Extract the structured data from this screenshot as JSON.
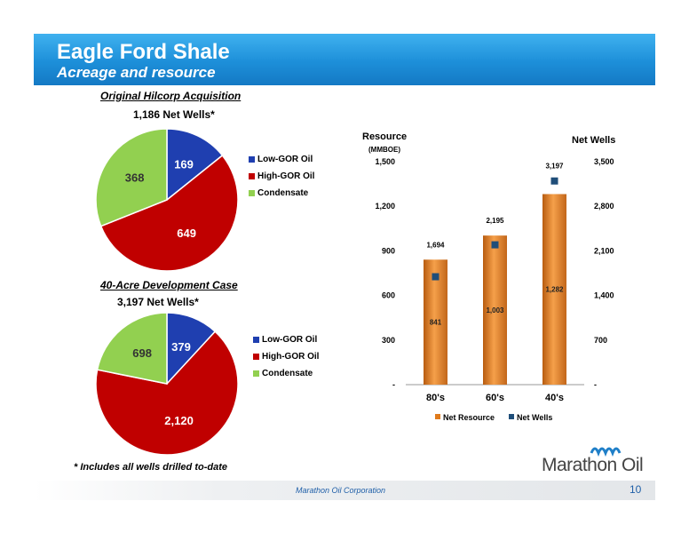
{
  "header": {
    "title": "Eagle Ford Shale",
    "subtitle": "Acreage and resource"
  },
  "chart_data": [
    {
      "type": "pie",
      "title": "Original Hilcorp Acquisition",
      "subtitle": "1,186 Net Wells*",
      "categories": [
        "Low-GOR Oil",
        "High-GOR Oil",
        "Condensate"
      ],
      "values": [
        169,
        649,
        368
      ],
      "value_labels": [
        "169",
        "649",
        "368"
      ],
      "colors": [
        "#1f3fb0",
        "#c00000",
        "#92d050"
      ],
      "legend_position": "right"
    },
    {
      "type": "pie",
      "title": "40-Acre Development Case",
      "subtitle": "3,197 Net Wells*",
      "categories": [
        "Low-GOR Oil",
        "High-GOR Oil",
        "Condensate"
      ],
      "values": [
        379,
        2120,
        698
      ],
      "value_labels": [
        "379",
        "2,120",
        "698"
      ],
      "colors": [
        "#1f3fb0",
        "#c00000",
        "#92d050"
      ],
      "legend_position": "right"
    },
    {
      "type": "bar",
      "categories": [
        "80's",
        "60's",
        "40's"
      ],
      "ylabel": "Resource",
      "ylabel_unit": "(MMBOE)",
      "y2label": "Net Wells",
      "ylim": [
        0,
        1500
      ],
      "y2lim": [
        0,
        3500
      ],
      "yticks": [
        "-",
        "300",
        "600",
        "900",
        "1,200",
        "1,500"
      ],
      "y2ticks": [
        "-",
        "700",
        "1,400",
        "2,100",
        "2,800",
        "3,500"
      ],
      "series": [
        {
          "name": "Net Resource",
          "axis": "left",
          "values": [
            841,
            1003,
            1282
          ],
          "value_labels": [
            "841",
            "1,003",
            "1,282"
          ],
          "color": "#e07b1c"
        },
        {
          "name": "Net Wells",
          "axis": "right",
          "marker": "square",
          "values": [
            1694,
            2195,
            3197
          ],
          "value_labels": [
            "1,694",
            "2,195",
            "3,197"
          ],
          "color": "#1f4e79"
        }
      ],
      "legend_position": "bottom"
    }
  ],
  "footnote": "* Includes all wells drilled to-date",
  "footer": {
    "company": "Marathon Oil Corporation",
    "page": "10",
    "logo_text": "Marathon Oil"
  }
}
